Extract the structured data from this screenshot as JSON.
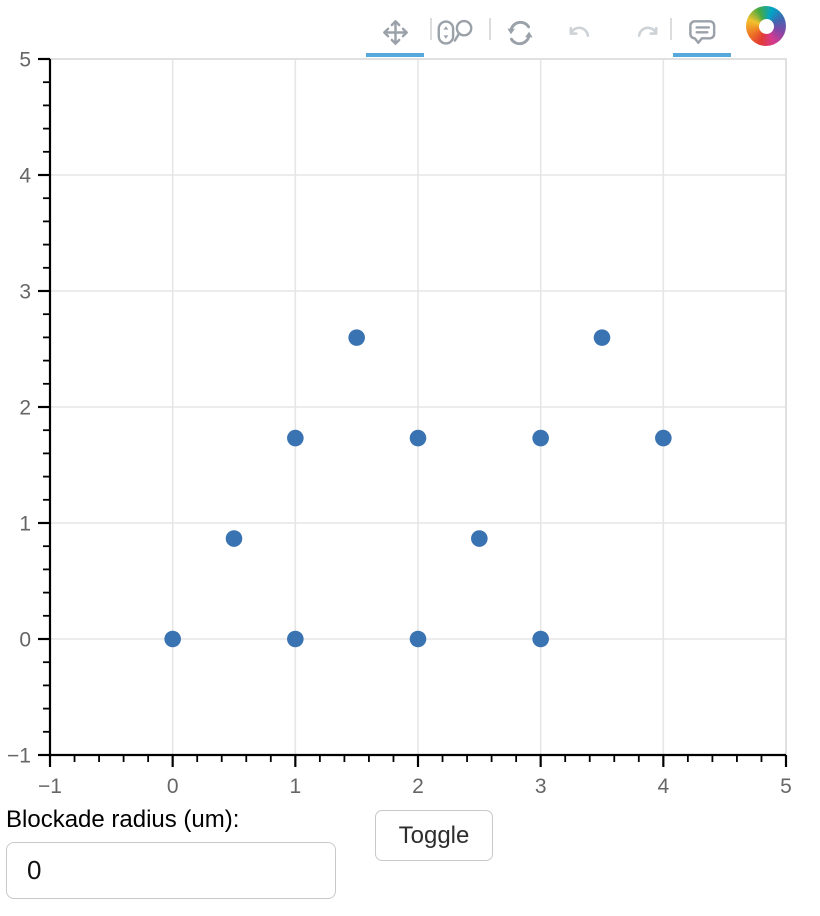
{
  "toolbar": {
    "tools": [
      {
        "id": "pan",
        "icon": "pan-icon",
        "active": true,
        "disabled": false
      },
      {
        "id": "wheel-zoom",
        "icon": "wheel-zoom-icon",
        "active": false,
        "disabled": false
      },
      {
        "id": "reset",
        "icon": "reset-icon",
        "active": false,
        "disabled": false
      },
      {
        "id": "undo",
        "icon": "undo-icon",
        "active": false,
        "disabled": true
      },
      {
        "id": "redo",
        "icon": "redo-icon",
        "active": false,
        "disabled": true
      },
      {
        "id": "hover",
        "icon": "hover-icon",
        "active": true,
        "disabled": false
      }
    ],
    "logo": "bokeh-logo",
    "icon_color": "#9aa1a8",
    "disabled_icon_color": "#cdd2d6",
    "active_underline_color": "#57a8dd"
  },
  "chart_data": {
    "type": "scatter",
    "title": "",
    "xlabel": "",
    "ylabel": "",
    "xlim": [
      -1,
      5
    ],
    "ylim": [
      -1,
      5
    ],
    "x_ticks": [
      -1,
      0,
      1,
      2,
      3,
      4,
      5
    ],
    "y_ticks": [
      -1,
      0,
      1,
      2,
      3,
      4,
      5
    ],
    "minor_tick_step": 0.2,
    "grid": true,
    "points": [
      {
        "x": 0,
        "y": 0
      },
      {
        "x": 1,
        "y": 0
      },
      {
        "x": 2,
        "y": 0
      },
      {
        "x": 3,
        "y": 0
      },
      {
        "x": 0.5,
        "y": 0.866
      },
      {
        "x": 2.5,
        "y": 0.866
      },
      {
        "x": 1,
        "y": 1.732
      },
      {
        "x": 2,
        "y": 1.732
      },
      {
        "x": 3,
        "y": 1.732
      },
      {
        "x": 4,
        "y": 1.732
      },
      {
        "x": 1.5,
        "y": 2.598
      },
      {
        "x": 3.5,
        "y": 2.598
      }
    ],
    "marker": {
      "shape": "circle",
      "color": "#3a73b2",
      "radius_px": 8.3
    }
  },
  "controls": {
    "blockade_label": "Blockade radius (um):",
    "blockade_value": "0",
    "toggle_label": "Toggle"
  }
}
